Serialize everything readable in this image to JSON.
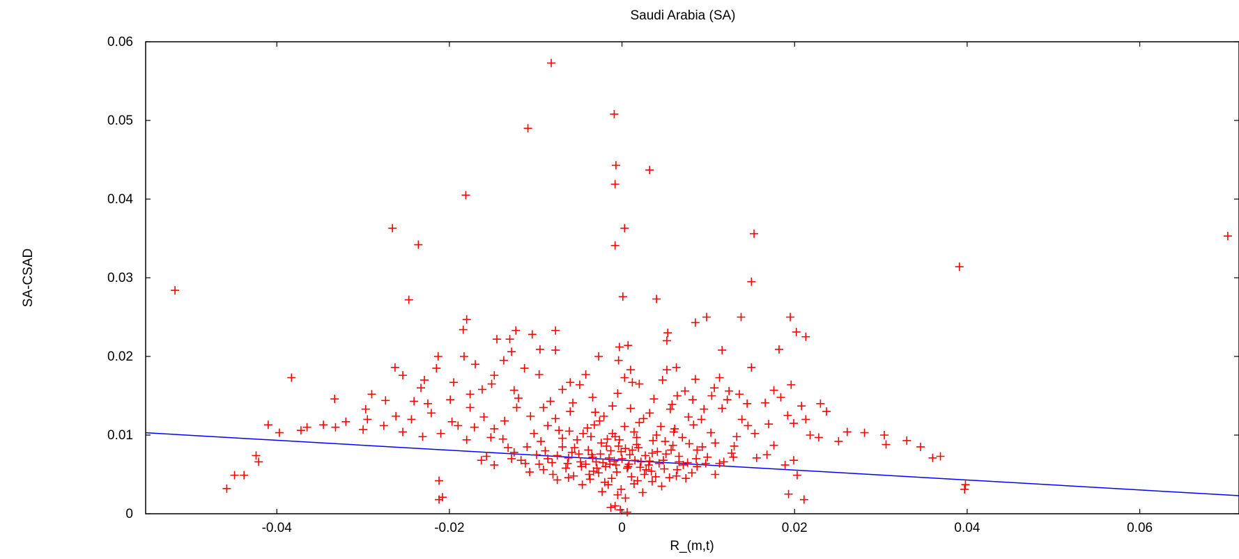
{
  "chart_data": {
    "type": "scatter",
    "title": "Saudi Arabia (SA)",
    "xlabel": "R_(m,t)",
    "ylabel": "SA-CSAD",
    "xlim": [
      -0.0552,
      0.0715
    ],
    "ylim": [
      0,
      0.06
    ],
    "xticks": [
      -0.04,
      -0.02,
      0,
      0.02,
      0.04,
      0.06
    ],
    "xtick_labels": [
      "-0.04",
      "-0.02",
      "0",
      "0.02",
      "0.04",
      "0.06"
    ],
    "yticks": [
      0,
      0.01,
      0.02,
      0.03,
      0.04,
      0.05,
      0.06
    ],
    "ytick_labels": [
      "0",
      "0.01",
      "0.02",
      "0.03",
      "0.04",
      "0.05",
      "0.06"
    ],
    "grid": false,
    "marker": "+",
    "marker_color": "#ff0000",
    "line_color": "#0000ff",
    "fit_line": {
      "x": [
        -0.0552,
        0.0715
      ],
      "y": [
        0.0103,
        0.0023
      ]
    },
    "points": [
      [
        -0.0082,
        0.0573
      ],
      [
        -0.0009,
        0.0508
      ],
      [
        -0.0109,
        0.049
      ],
      [
        -0.0007,
        0.0443
      ],
      [
        0.0032,
        0.0437
      ],
      [
        -0.0008,
        0.0419
      ],
      [
        -0.0181,
        0.0405
      ],
      [
        0.0003,
        0.0363
      ],
      [
        -0.0266,
        0.0363
      ],
      [
        0.0153,
        0.0356
      ],
      [
        0.0702,
        0.0353
      ],
      [
        -0.0236,
        0.0342
      ],
      [
        -0.0008,
        0.0341
      ],
      [
        0.0391,
        0.0314
      ],
      [
        0.015,
        0.0295
      ],
      [
        -0.0518,
        0.0284
      ],
      [
        0.0001,
        0.0276
      ],
      [
        0.004,
        0.0273
      ],
      [
        -0.0247,
        0.0272
      ],
      [
        -0.018,
        0.0247
      ],
      [
        0.0195,
        0.025
      ],
      [
        0.0138,
        0.025
      ],
      [
        0.0098,
        0.025
      ],
      [
        0.0085,
        0.0243
      ],
      [
        -0.0184,
        0.0234
      ],
      [
        -0.0077,
        0.0233
      ],
      [
        -0.0123,
        0.0233
      ],
      [
        0.0053,
        0.023
      ],
      [
        0.0202,
        0.0231
      ],
      [
        -0.0104,
        0.0228
      ],
      [
        -0.0145,
        0.0222
      ],
      [
        0.0213,
        0.0225
      ],
      [
        -0.013,
        0.0222
      ],
      [
        0.0052,
        0.022
      ],
      [
        0.0007,
        0.0214
      ],
      [
        -0.0077,
        0.0208
      ],
      [
        0.0116,
        0.0208
      ],
      [
        -0.0003,
        0.0212
      ],
      [
        -0.0128,
        0.0206
      ],
      [
        -0.0095,
        0.0209
      ],
      [
        0.0182,
        0.0209
      ],
      [
        -0.0213,
        0.02
      ],
      [
        -0.0183,
        0.02
      ],
      [
        -0.0137,
        0.0195
      ],
      [
        -0.0027,
        0.02
      ],
      [
        -0.0004,
        0.0195
      ],
      [
        -0.017,
        0.019
      ],
      [
        0.001,
        0.0183
      ],
      [
        0.0052,
        0.0183
      ],
      [
        0.0063,
        0.0186
      ],
      [
        0.015,
        0.0186
      ],
      [
        -0.0263,
        0.0186
      ],
      [
        -0.0215,
        0.0185
      ],
      [
        -0.0113,
        0.0185
      ],
      [
        -0.0148,
        0.0176
      ],
      [
        -0.0383,
        0.0173
      ],
      [
        -0.0254,
        0.0176
      ],
      [
        -0.0096,
        0.0177
      ],
      [
        -0.0042,
        0.0177
      ],
      [
        0.0003,
        0.0173
      ],
      [
        0.0085,
        0.0171
      ],
      [
        0.0113,
        0.0173
      ],
      [
        0.002,
        0.0165
      ],
      [
        -0.0229,
        0.017
      ],
      [
        0.0196,
        0.0164
      ],
      [
        0.0176,
        0.0157
      ],
      [
        -0.0195,
        0.0167
      ],
      [
        -0.006,
        0.0167
      ],
      [
        -0.029,
        0.0152
      ],
      [
        -0.0233,
        0.016
      ],
      [
        -0.0162,
        0.0158
      ],
      [
        -0.0125,
        0.0157
      ],
      [
        0.0124,
        0.0156
      ],
      [
        0.0145,
        0.014
      ],
      [
        0.023,
        0.014
      ],
      [
        -0.0333,
        0.0146
      ],
      [
        -0.0297,
        0.0133
      ],
      [
        -0.0225,
        0.014
      ],
      [
        -0.0176,
        0.0135
      ],
      [
        0.0064,
        0.015
      ],
      [
        0.0104,
        0.015
      ],
      [
        0.0184,
        0.0148
      ],
      [
        -0.041,
        0.0113
      ],
      [
        -0.0365,
        0.011
      ],
      [
        -0.0346,
        0.0113
      ],
      [
        -0.032,
        0.0117
      ],
      [
        -0.0295,
        0.012
      ],
      [
        -0.0262,
        0.0124
      ],
      [
        -0.0244,
        0.012
      ],
      [
        -0.0221,
        0.0128
      ],
      [
        -0.019,
        0.0112
      ],
      [
        -0.0397,
        0.0103
      ],
      [
        -0.0372,
        0.0106
      ],
      [
        -0.0332,
        0.011
      ],
      [
        -0.03,
        0.0107
      ],
      [
        -0.0276,
        0.0112
      ],
      [
        -0.0254,
        0.0104
      ],
      [
        -0.0231,
        0.0098
      ],
      [
        -0.021,
        0.0102
      ],
      [
        -0.018,
        0.0094
      ],
      [
        0.0192,
        0.0125
      ],
      [
        0.0213,
        0.012
      ],
      [
        0.0218,
        0.01
      ],
      [
        0.0261,
        0.0104
      ],
      [
        0.0281,
        0.0103
      ],
      [
        0.0304,
        0.01
      ],
      [
        0.033,
        0.0093
      ],
      [
        0.0306,
        0.0088
      ],
      [
        0.0346,
        0.0085
      ],
      [
        0.036,
        0.0071
      ],
      [
        0.0369,
        0.0073
      ],
      [
        0.0251,
        0.0092
      ],
      [
        0.0228,
        0.0097
      ],
      [
        0.0176,
        0.0087
      ],
      [
        0.0199,
        0.0068
      ],
      [
        -0.0424,
        0.0074
      ],
      [
        -0.0421,
        0.0066
      ],
      [
        -0.0449,
        0.0049
      ],
      [
        -0.0438,
        0.0049
      ],
      [
        -0.0458,
        0.0032
      ],
      [
        -0.0212,
        0.0042
      ],
      [
        -0.0212,
        0.0018
      ],
      [
        -0.0208,
        0.0021
      ],
      [
        0.0203,
        0.0049
      ],
      [
        0.0193,
        0.0025
      ],
      [
        0.0211,
        0.0018
      ],
      [
        0.0398,
        0.0037
      ],
      [
        0.0397,
        0.0031
      ],
      [
        0.0189,
        0.0062
      ],
      [
        0.0168,
        0.0075
      ],
      [
        -0.0148,
        0.0062
      ],
      [
        -0.0163,
        0.0068
      ],
      [
        -0.0002,
        0.0005
      ],
      [
        -0.0008,
        0.001
      ],
      [
        0.0006,
        0.0002
      ],
      [
        -0.0013,
        0.0008
      ],
      [
        -0.0014,
        0.0063
      ],
      [
        0.0008,
        0.0063
      ],
      [
        0.0032,
        0.0067
      ],
      [
        -0.0034,
        0.0072
      ],
      [
        -0.0047,
        0.006
      ],
      [
        0.0049,
        0.0057
      ],
      [
        -0.0001,
        0.0079
      ],
      [
        -0.0058,
        0.0078
      ],
      [
        0.0057,
        0.0081
      ],
      [
        0.0017,
        0.0088
      ],
      [
        -0.0024,
        0.009
      ],
      [
        -0.0081,
        0.0065
      ],
      [
        0.0076,
        0.0065
      ],
      [
        -0.0027,
        0.0052
      ],
      [
        0.0026,
        0.005
      ],
      [
        -0.0069,
        0.0085
      ],
      [
        0.0078,
        0.0089
      ],
      [
        -0.0008,
        0.0098
      ],
      [
        0.004,
        0.01
      ],
      [
        -0.0045,
        0.0102
      ],
      [
        -0.0099,
        0.0075
      ],
      [
        0.0099,
        0.0072
      ],
      [
        -0.011,
        0.0085
      ],
      [
        0.0108,
        0.009
      ],
      [
        0.0003,
        0.0111
      ],
      [
        -0.0032,
        0.0113
      ],
      [
        0.0061,
        0.0108
      ],
      [
        -0.0073,
        0.0106
      ],
      [
        -0.0016,
        0.0037
      ],
      [
        0.0014,
        0.0038
      ],
      [
        -0.0001,
        0.0031
      ],
      [
        0.0035,
        0.0041
      ],
      [
        -0.0037,
        0.0044
      ],
      [
        -0.0056,
        0.0048
      ],
      [
        0.0055,
        0.0046
      ],
      [
        0.0087,
        0.006
      ],
      [
        -0.0091,
        0.0056
      ],
      [
        -0.0125,
        0.0078
      ],
      [
        0.0127,
        0.0077
      ],
      [
        -0.0138,
        0.0095
      ],
      [
        0.0133,
        0.0098
      ],
      [
        -0.0148,
        0.0108
      ],
      [
        0.0146,
        0.0112
      ],
      [
        -0.016,
        0.0123
      ],
      [
        0.0092,
        0.012
      ],
      [
        -0.0106,
        0.0124
      ],
      [
        -0.0021,
        0.0124
      ],
      [
        0.0025,
        0.0121
      ],
      [
        -0.006,
        0.013
      ],
      [
        0.0056,
        0.0133
      ],
      [
        -0.0122,
        0.0135
      ],
      [
        0.0116,
        0.0134
      ],
      [
        -0.0083,
        0.0143
      ],
      [
        0.0082,
        0.0145
      ],
      [
        -0.0034,
        0.0148
      ],
      [
        0.0037,
        0.0146
      ],
      [
        -0.0005,
        0.0153
      ],
      [
        0.0012,
        0.0167
      ],
      [
        -0.0019,
        0.006
      ],
      [
        0.0021,
        0.0059
      ],
      [
        -0.0039,
        0.0081
      ],
      [
        0.0041,
        0.0079
      ],
      [
        -0.0062,
        0.0071
      ],
      [
        0.0066,
        0.0073
      ],
      [
        -0.0012,
        0.0045
      ],
      [
        0.0011,
        0.0047
      ],
      [
        -0.0029,
        0.0058
      ],
      [
        0.0028,
        0.0056
      ],
      [
        0.0,
        0.007
      ],
      [
        -0.0009,
        0.0067
      ],
      [
        0.0009,
        0.0075
      ],
      [
        -0.0048,
        0.0066
      ],
      [
        0.0048,
        0.0068
      ],
      [
        -0.0025,
        0.0076
      ],
      [
        0.0027,
        0.0074
      ],
      [
        -0.0075,
        0.0074
      ],
      [
        0.0071,
        0.0062
      ],
      [
        -0.0018,
        0.0086
      ],
      [
        0.0019,
        0.0084
      ],
      [
        -0.0052,
        0.0094
      ],
      [
        0.005,
        0.0092
      ],
      [
        -0.0094,
        0.0092
      ],
      [
        0.0093,
        0.0085
      ],
      [
        -0.0003,
        0.0094
      ],
      [
        0.0006,
        0.0058
      ],
      [
        -0.0006,
        0.0053
      ],
      [
        -0.0033,
        0.0054
      ],
      [
        0.0034,
        0.0054
      ],
      [
        -0.0065,
        0.0058
      ],
      [
        0.0064,
        0.0056
      ],
      [
        -0.0089,
        0.008
      ],
      [
        0.0087,
        0.0081
      ],
      [
        -0.0042,
        0.0063
      ],
      [
        0.0043,
        0.0064
      ],
      [
        -0.0015,
        0.0071
      ],
      [
        0.0015,
        0.0068
      ],
      [
        -0.003,
        0.0066
      ],
      [
        0.0031,
        0.0062
      ],
      [
        -0.0055,
        0.0084
      ],
      [
        0.0059,
        0.0087
      ],
      [
        -0.0011,
        0.0102
      ],
      [
        0.0014,
        0.0104
      ],
      [
        -0.0069,
        0.0096
      ],
      [
        0.007,
        0.0097
      ],
      [
        -0.004,
        0.0109
      ],
      [
        0.0045,
        0.0111
      ],
      [
        -0.0026,
        0.0118
      ],
      [
        0.002,
        0.0116
      ],
      [
        -0.0102,
        0.0102
      ],
      [
        0.0103,
        0.0103
      ],
      [
        -0.0086,
        0.0112
      ],
      [
        0.0083,
        0.0113
      ],
      [
        -0.0117,
        0.0068
      ],
      [
        0.0118,
        0.0066
      ],
      [
        -0.0132,
        0.0084
      ],
      [
        0.013,
        0.0086
      ],
      [
        -0.0152,
        0.0097
      ],
      [
        0.0154,
        0.0102
      ],
      [
        -0.0171,
        0.011
      ],
      [
        0.017,
        0.0114
      ],
      [
        -0.0197,
        0.0117
      ],
      [
        0.0199,
        0.0115
      ],
      [
        -0.0241,
        0.0143
      ],
      [
        0.0208,
        0.0137
      ],
      [
        -0.0274,
        0.0144
      ],
      [
        0.0237,
        0.013
      ],
      [
        -0.0199,
        0.0145
      ],
      [
        0.0166,
        0.0141
      ],
      [
        -0.0176,
        0.0152
      ],
      [
        0.0136,
        0.0152
      ],
      [
        -0.0151,
        0.0165
      ],
      [
        0.0107,
        0.016
      ],
      [
        -0.0069,
        0.0158
      ],
      [
        0.0073,
        0.0156
      ],
      [
        -0.0049,
        0.0164
      ],
      [
        0.0047,
        0.017
      ],
      [
        -0.012,
        0.0147
      ],
      [
        0.0122,
        0.0145
      ],
      [
        -0.0011,
        0.0137
      ],
      [
        0.001,
        0.0134
      ],
      [
        -0.0057,
        0.0141
      ],
      [
        0.0058,
        0.0139
      ],
      [
        -0.0091,
        0.0135
      ],
      [
        0.0095,
        0.0133
      ],
      [
        -0.0031,
        0.0129
      ],
      [
        0.0032,
        0.0128
      ],
      [
        -0.0077,
        0.0121
      ],
      [
        0.0077,
        0.0123
      ],
      [
        -0.0136,
        0.0118
      ],
      [
        0.0139,
        0.012
      ],
      [
        -0.0157,
        0.0073
      ],
      [
        0.0156,
        0.0071
      ],
      [
        -0.0107,
        0.0053
      ],
      [
        0.0108,
        0.005
      ],
      [
        -0.0075,
        0.0043
      ],
      [
        0.0074,
        0.0045
      ],
      [
        -0.0046,
        0.0037
      ],
      [
        0.0046,
        0.0035
      ],
      [
        -0.0023,
        0.0028
      ],
      [
        0.0024,
        0.0027
      ],
      [
        -0.0005,
        0.0024
      ],
      [
        0.0004,
        0.002
      ],
      [
        -0.0096,
        0.0063
      ],
      [
        0.0097,
        0.0064
      ],
      [
        -0.008,
        0.005
      ],
      [
        0.0081,
        0.0052
      ],
      [
        -0.0062,
        0.0046
      ],
      [
        0.0063,
        0.0048
      ],
      [
        -0.0038,
        0.005
      ],
      [
        0.0039,
        0.0047
      ],
      [
        -0.002,
        0.004
      ],
      [
        0.0018,
        0.0042
      ],
      [
        -0.0017,
        0.0095
      ],
      [
        0.0017,
        0.0097
      ],
      [
        -0.0036,
        0.0098
      ],
      [
        0.0036,
        0.0093
      ],
      [
        -0.0061,
        0.0105
      ],
      [
        0.006,
        0.0104
      ],
      [
        -0.0063,
        0.0064
      ],
      [
        0.0066,
        0.0066
      ],
      [
        -0.0035,
        0.0075
      ],
      [
        0.0035,
        0.0077
      ],
      [
        -0.0013,
        0.008
      ],
      [
        0.0012,
        0.0081
      ],
      [
        -0.0004,
        0.0086
      ],
      [
        0.0004,
        0.0083
      ],
      [
        -0.0022,
        0.0065
      ],
      [
        0.0022,
        0.0066
      ],
      [
        -0.0007,
        0.0062
      ],
      [
        0.0007,
        0.006
      ],
      [
        -0.005,
        0.0076
      ],
      [
        0.0051,
        0.0076
      ],
      [
        -0.0086,
        0.007
      ],
      [
        0.0086,
        0.007
      ],
      [
        -0.0112,
        0.0064
      ],
      [
        0.0113,
        0.0064
      ],
      [
        -0.0128,
        0.007
      ],
      [
        0.0129,
        0.0072
      ]
    ]
  }
}
